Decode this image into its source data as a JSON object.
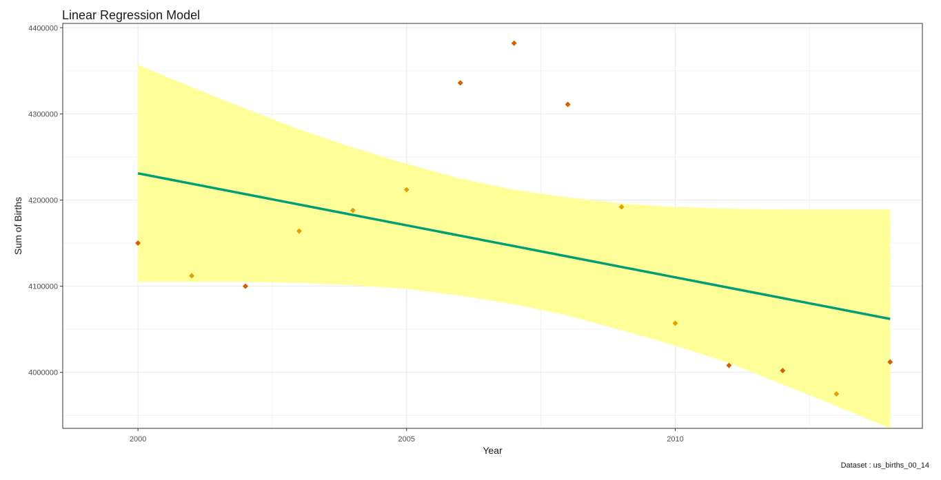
{
  "chart_data": {
    "type": "scatter",
    "title": "Linear Regression Model",
    "xlabel": "Year",
    "ylabel": "Sum of Births",
    "caption": "Dataset : us_births_00_14",
    "xlim": [
      1998.6,
      2014.6
    ],
    "ylim": [
      3935000,
      4405000
    ],
    "x_ticks": [
      2000,
      2005,
      2010
    ],
    "y_ticks": [
      4000000,
      4100000,
      4200000,
      4300000,
      4400000
    ],
    "grid": true,
    "points": [
      {
        "x": 2000,
        "y": 4150000,
        "color": "#d55e00"
      },
      {
        "x": 2001,
        "y": 4112000,
        "color": "#e69f00"
      },
      {
        "x": 2002,
        "y": 4100000,
        "color": "#d55e00"
      },
      {
        "x": 2003,
        "y": 4164000,
        "color": "#e69f00"
      },
      {
        "x": 2004,
        "y": 4188000,
        "color": "#e69f00"
      },
      {
        "x": 2005,
        "y": 4212000,
        "color": "#e69f00"
      },
      {
        "x": 2006,
        "y": 4336000,
        "color": "#d55e00"
      },
      {
        "x": 2007,
        "y": 4382000,
        "color": "#d55e00"
      },
      {
        "x": 2008,
        "y": 4311000,
        "color": "#d55e00"
      },
      {
        "x": 2009,
        "y": 4192000,
        "color": "#e69f00"
      },
      {
        "x": 2010,
        "y": 4057000,
        "color": "#e69f00"
      },
      {
        "x": 2011,
        "y": 4008000,
        "color": "#d55e00"
      },
      {
        "x": 2012,
        "y": 4002000,
        "color": "#d55e00"
      },
      {
        "x": 2013,
        "y": 3975000,
        "color": "#e69f00"
      },
      {
        "x": 2014,
        "y": 4012000,
        "color": "#d55e00"
      }
    ],
    "regression": {
      "x": [
        2000,
        2014
      ],
      "y": [
        4231000,
        4062000
      ],
      "color": "#009e73"
    },
    "confidence_band": {
      "color": "#ffff99",
      "x": [
        2000,
        2001,
        2002,
        2003,
        2004,
        2005,
        2006,
        2007,
        2008,
        2009,
        2010,
        2011,
        2012,
        2013,
        2014
      ],
      "upper": [
        4357000,
        4331000,
        4306000,
        4282000,
        4261000,
        4242000,
        4225000,
        4212000,
        4203000,
        4196000,
        4192000,
        4190000,
        4189000,
        4189000,
        4189000
      ],
      "lower": [
        4105000,
        4105000,
        4105000,
        4104000,
        4101000,
        4097000,
        4089000,
        4079000,
        4066000,
        4049000,
        4031000,
        4011000,
        3986000,
        3961000,
        3935000
      ]
    }
  }
}
